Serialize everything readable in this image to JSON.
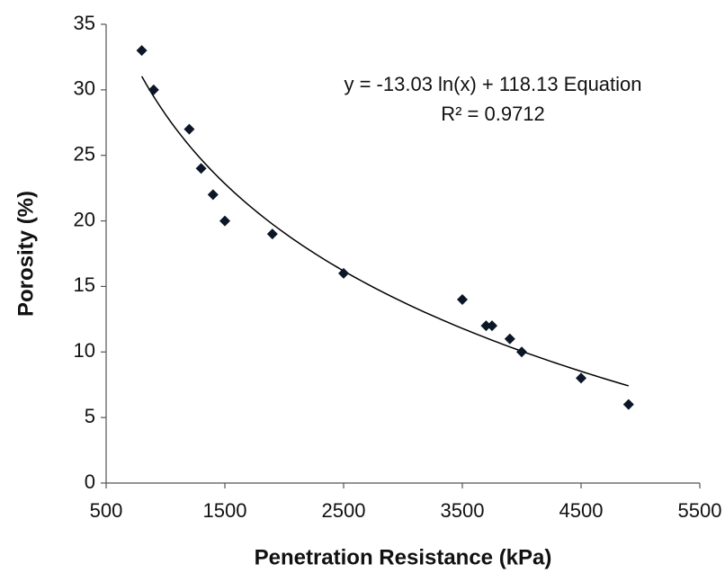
{
  "chart_data": {
    "type": "scatter",
    "xlabel": "Penetration Resistance (kPa)",
    "ylabel": "Porosity (%)",
    "x": [
      800,
      900,
      1200,
      1300,
      1400,
      1500,
      1900,
      2500,
      3500,
      3700,
      3750,
      3900,
      4000,
      4500,
      4900
    ],
    "values": [
      33,
      30,
      27,
      24,
      22,
      20,
      19,
      16,
      14,
      12,
      12,
      11,
      10,
      8,
      6
    ],
    "color": "#0b1626",
    "xlim": [
      500,
      5500
    ],
    "xticks": [
      500,
      1500,
      2500,
      3500,
      4500,
      5500
    ],
    "ylim": [
      0,
      35
    ],
    "yticks": [
      0,
      5,
      10,
      15,
      20,
      25,
      30,
      35
    ],
    "grid": false,
    "trendline": {
      "type": "log",
      "coefficient": -13.03,
      "intercept": 118.13,
      "label": "y = -13.03 ln(x) + 118.13  Equation",
      "r2_label": "R² = 0.9712"
    }
  }
}
